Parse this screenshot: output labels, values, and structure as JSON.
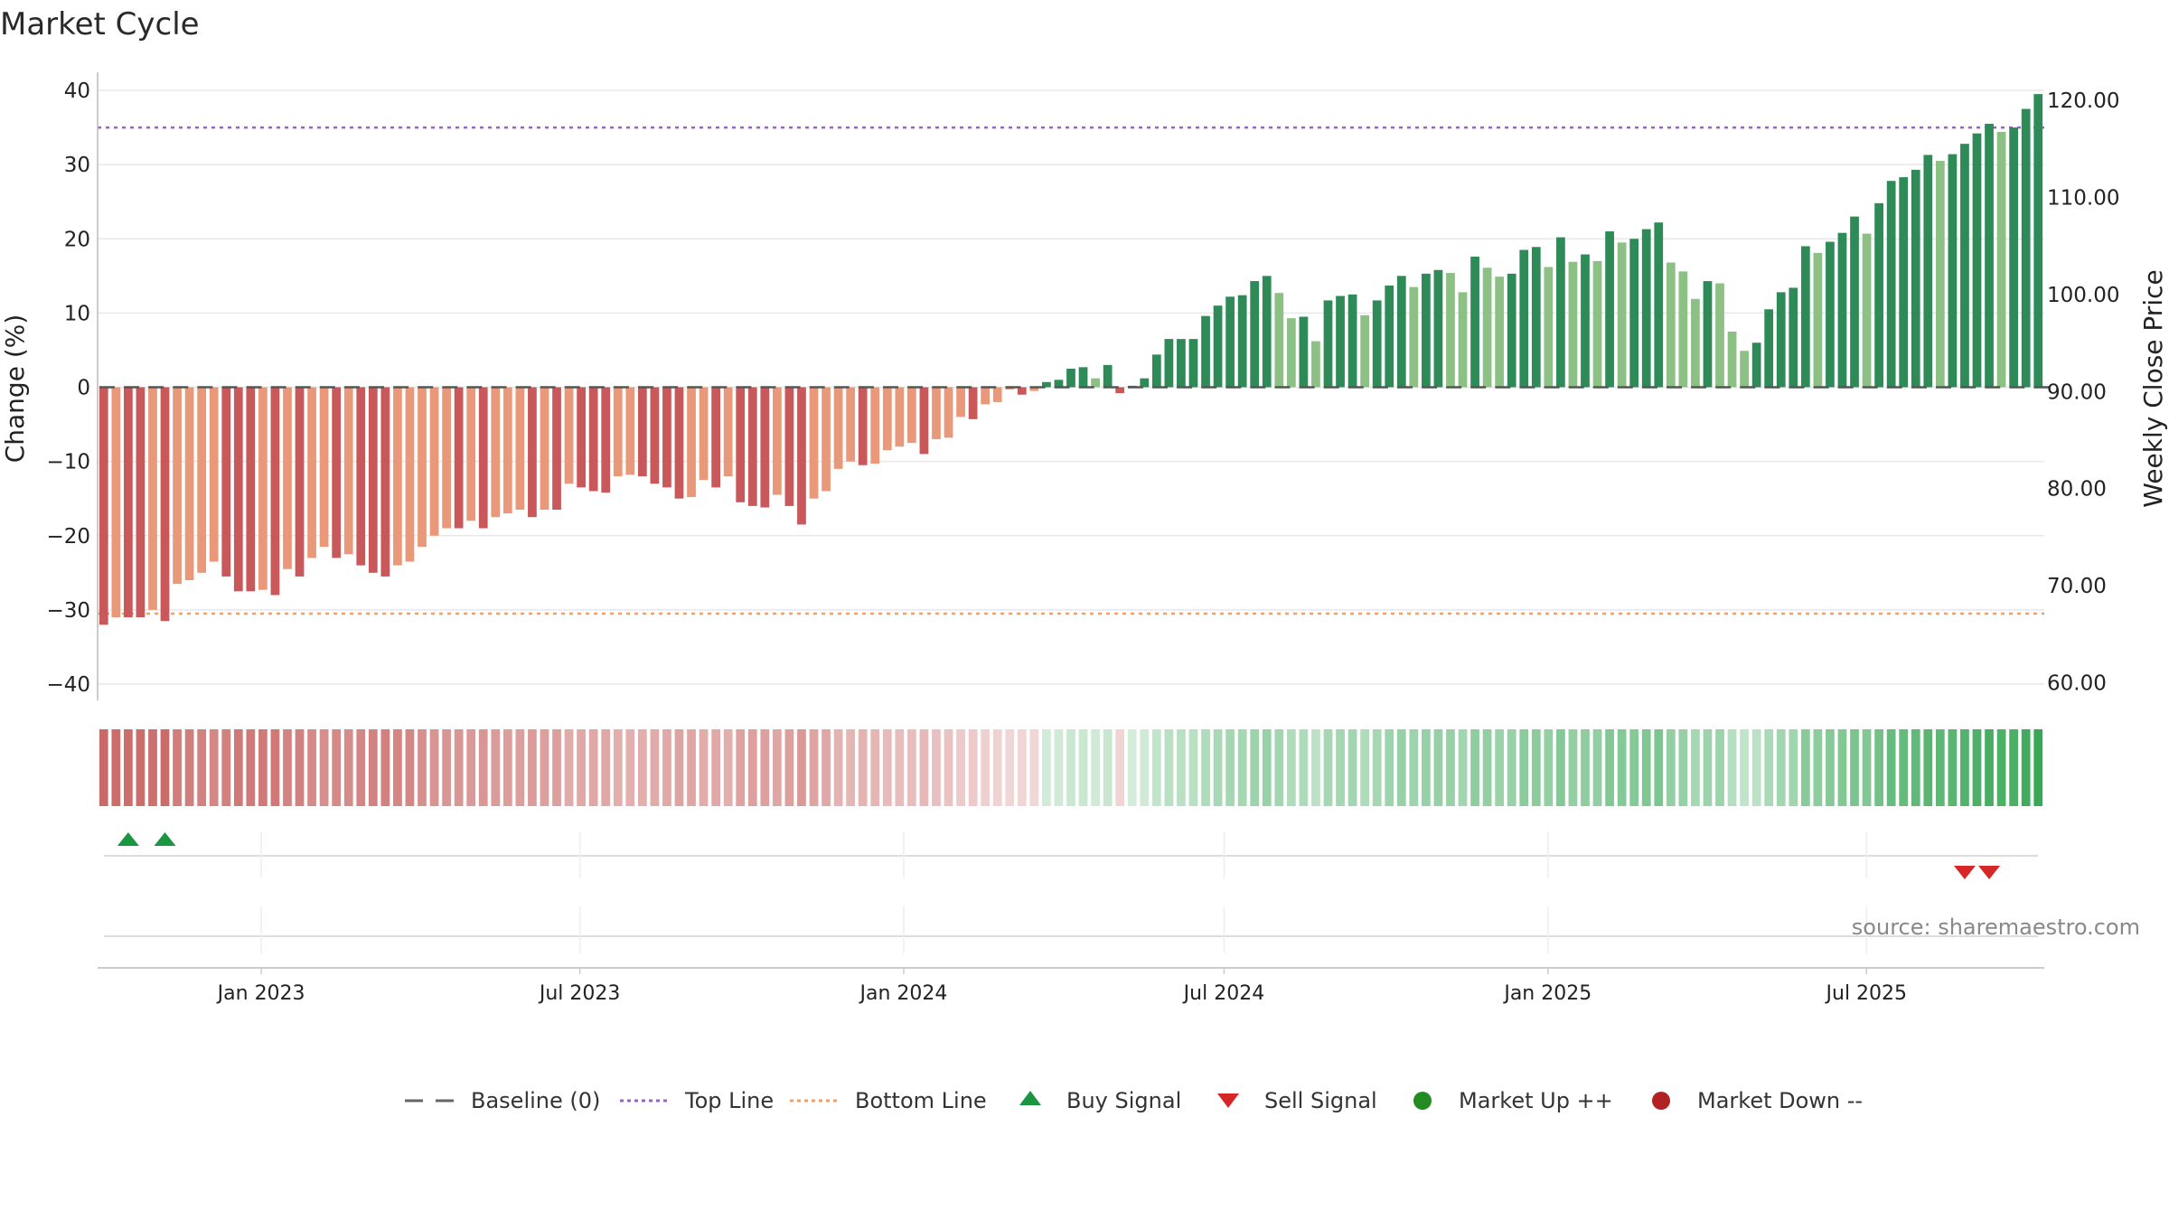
{
  "chart_data": {
    "type": "bar",
    "title": "Market Cycle",
    "ylabel_left": "Change (%)",
    "ylabel_right": "Weekly Close Price",
    "ylim_left": [
      -40,
      40
    ],
    "yticks_left": [
      "40",
      "30",
      "20",
      "10",
      "0",
      "−10",
      "−20",
      "−30",
      "−40"
    ],
    "yticks_left_values": [
      40,
      30,
      20,
      10,
      0,
      -10,
      -20,
      -30,
      -40
    ],
    "yticks_right": [
      "120.00",
      "110.00",
      "100.00",
      "90.00",
      "80.00",
      "70.00",
      "60.00"
    ],
    "yticks_right_values": [
      120,
      110,
      100,
      90,
      80,
      70,
      60
    ],
    "right_axis_range": [
      58,
      121.5
    ],
    "x_start": "2022-09-30",
    "x_end": "2025-10-10",
    "x_tick_labels": [
      "Jan 2023",
      "Jul 2023",
      "Jan 2024",
      "Jul 2024",
      "Jan 2025",
      "Jul 2025"
    ],
    "x_tick_dates": [
      "2023-01-01",
      "2023-07-01",
      "2024-01-01",
      "2024-07-01",
      "2025-01-01",
      "2025-07-01"
    ],
    "top_line": 35,
    "bottom_line": -30.5,
    "baseline": 0,
    "change_values": [
      -32,
      -31,
      -31,
      -31,
      -30,
      -31.5,
      -26.5,
      -26,
      -25,
      -23.5,
      -25.5,
      -27.5,
      -27.5,
      -27.3,
      -28,
      -24.5,
      -25.5,
      -23,
      -21.5,
      -23,
      -22.5,
      -24,
      -25,
      -25.5,
      -24,
      -23.5,
      -21.5,
      -20,
      -19,
      -19,
      -18,
      -19,
      -17.5,
      -17,
      -16.5,
      -17.5,
      -16.5,
      -16.5,
      -13,
      -13.5,
      -14,
      -14.2,
      -12,
      -11.8,
      -12,
      -13,
      -13.5,
      -15,
      -14.8,
      -12.5,
      -13.5,
      -12,
      -15.5,
      -16,
      -16.2,
      -14.5,
      -16,
      -18.5,
      -15,
      -14,
      -11,
      -10,
      -10.5,
      -10.3,
      -8.5,
      -8,
      -7.5,
      -9,
      -7,
      -6.8,
      -4,
      -4.3,
      -2.3,
      -2,
      -0.3,
      -1,
      -0.5,
      0.7,
      1,
      2.5,
      2.7,
      1.2,
      3,
      -0.8,
      0.2,
      1.2,
      4.4,
      6.5,
      6.5,
      6.5,
      9.6,
      11,
      12.2,
      12.4,
      14.3,
      15,
      12.7,
      9.3,
      9.5,
      6.2,
      11.7,
      12.3,
      12.5,
      9.7,
      11.7,
      13.7,
      15,
      13.5,
      15.3,
      15.8,
      15.4,
      12.8,
      17.6,
      16.1,
      14.9,
      15.3,
      18.5,
      18.9,
      16.2,
      20.2,
      16.9,
      17.9,
      17,
      21,
      19.5,
      20,
      21.3,
      22.2,
      16.8,
      15.6,
      11.9,
      14.3,
      14,
      7.5,
      4.9,
      6,
      10.5,
      12.8,
      13.4,
      19,
      18.1,
      19.6,
      20.8,
      23,
      20.7,
      24.8,
      27.8,
      28.3,
      29.3,
      31.3,
      30.5,
      31.4,
      32.8,
      34.2,
      35.5,
      34.4,
      35,
      37.5,
      39.5
    ],
    "price_range": [
      63.5,
      120
    ],
    "buy_signal_indices": [
      2,
      5
    ],
    "sell_signal_indices": [
      152,
      154
    ],
    "market_up_indices": [],
    "market_down_indices": [],
    "legend": [
      {
        "label": "Baseline (0)",
        "marker": "dash-gray",
        "color": "#666666"
      },
      {
        "label": "Top Line",
        "marker": "dotted-purple",
        "color": "#9467bd"
      },
      {
        "label": "Bottom Line",
        "marker": "dotted-orange",
        "color": "#f0a066"
      },
      {
        "label": "Buy Signal",
        "marker": "triangle-up",
        "color": "#1a9641"
      },
      {
        "label": "Sell Signal",
        "marker": "triangle-down",
        "color": "#d62728"
      },
      {
        "label": "Market Up ++",
        "marker": "circle",
        "color": "#228b22"
      },
      {
        "label": "Market Down --",
        "marker": "circle",
        "color": "#b22222"
      }
    ],
    "colors": {
      "neg_dark": "#c9585a",
      "neg_light": "#e9997a",
      "pos_dark": "#2e8b57",
      "pos_light": "#8cc084",
      "strip_red": "#c0504d",
      "strip_green": "#3aa757",
      "top_line": "#9467bd",
      "bottom_line": "#f0a066"
    }
  },
  "source": "source: sharemaestro.com"
}
